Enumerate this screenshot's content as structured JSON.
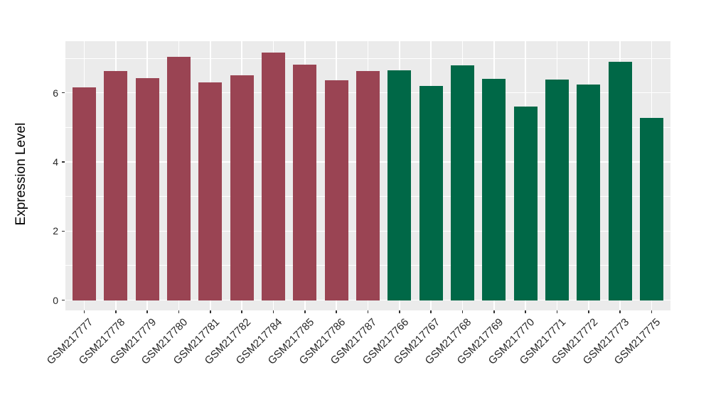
{
  "figure": {
    "background": "#FFFFFF",
    "panel_background": "#EBEBEB",
    "gridline_color": "#FFFFFF",
    "tick_mark_color": "#333333",
    "axis_text_color": "#262626",
    "axis_title_color": "#000000"
  },
  "chart_data": {
    "type": "bar",
    "title": "",
    "xlabel": "",
    "ylabel": "Expression Level",
    "ylim": [
      0,
      7.5
    ],
    "y_ticks": [
      0,
      2,
      4,
      6
    ],
    "y_minor_gridlines": [
      1,
      3,
      5,
      7
    ],
    "grid": "on",
    "legend_position": "none",
    "categories": [
      "GSM217777",
      "GSM217778",
      "GSM217779",
      "GSM217780",
      "GSM217781",
      "GSM217782",
      "GSM217784",
      "GSM217785",
      "GSM217786",
      "GSM217787",
      "GSM217766",
      "GSM217767",
      "GSM217768",
      "GSM217769",
      "GSM217770",
      "GSM217771",
      "GSM217772",
      "GSM217773",
      "GSM217775"
    ],
    "values": [
      6.15,
      6.64,
      6.42,
      7.04,
      6.31,
      6.51,
      7.17,
      6.82,
      6.36,
      6.64,
      6.65,
      6.19,
      6.8,
      6.4,
      5.6,
      6.39,
      6.24,
      6.9,
      5.27
    ],
    "groups": [
      "maroon",
      "maroon",
      "maroon",
      "maroon",
      "maroon",
      "maroon",
      "maroon",
      "maroon",
      "maroon",
      "maroon",
      "green",
      "green",
      "green",
      "green",
      "green",
      "green",
      "green",
      "green",
      "green"
    ],
    "group_colors": {
      "maroon": "#9A4453",
      "green": "#006847"
    }
  }
}
